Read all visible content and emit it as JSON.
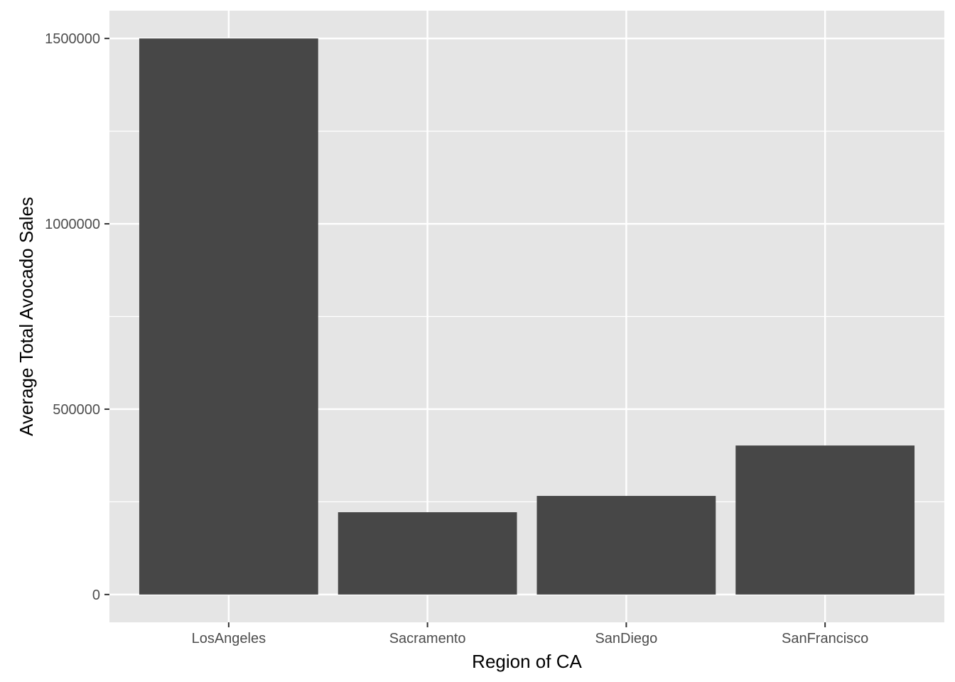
{
  "chart_data": {
    "type": "bar",
    "categories": [
      "LosAngeles",
      "Sacramento",
      "SanDiego",
      "SanFrancisco"
    ],
    "values": [
      1500000,
      222000,
      266000,
      402000
    ],
    "title": "",
    "xlabel": "Region of CA",
    "ylabel": "Average Total Avocado Sales",
    "ylim": [
      -75000,
      1575000
    ],
    "yticks": [
      0,
      500000,
      1000000,
      1500000
    ],
    "ytick_labels": [
      "0",
      "500000",
      "1000000",
      "1500000"
    ],
    "grid": true,
    "legend": "none",
    "colors": {
      "bar": "#474747",
      "panel": "#e5e5e5",
      "grid": "#ffffff",
      "tick": "#333333"
    }
  }
}
